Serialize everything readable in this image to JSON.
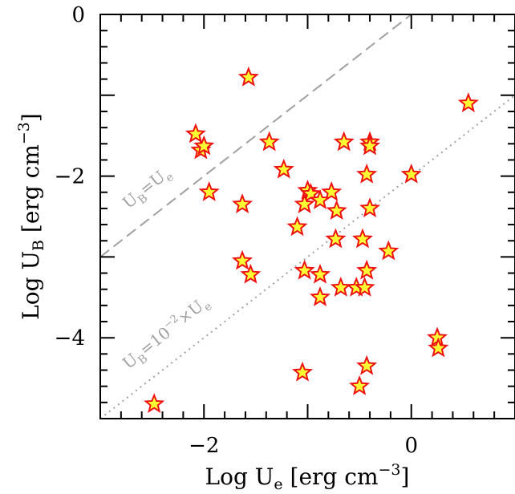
{
  "chart_data": {
    "type": "scatter",
    "title": "",
    "xlabel": "Log U_e [erg cm^-3]",
    "ylabel": "Log U_B [erg cm^-3]",
    "xlim": [
      -3,
      1
    ],
    "ylim": [
      -5,
      0
    ],
    "xticks": [
      {
        "value": -2,
        "label": "−2"
      },
      {
        "value": 0,
        "label": "0"
      }
    ],
    "yticks": [
      {
        "value": 0,
        "label": "0"
      },
      {
        "value": -2,
        "label": "−2"
      },
      {
        "value": -4,
        "label": "−4"
      }
    ],
    "marker": "star",
    "colors": {
      "marker_fill": "#ffff33",
      "marker_edge": "#ee1111",
      "reference_lines": "#a0a0a0"
    },
    "reference_lines": [
      {
        "label": "U_B=U_e",
        "slope": 1,
        "intercept": 0,
        "style": "dashed"
      },
      {
        "label": "U_B=10^-2×U_e",
        "slope": 1,
        "intercept": -2,
        "style": "dotted"
      }
    ],
    "points": [
      {
        "x": -1.57,
        "y": -0.78
      },
      {
        "x": 0.55,
        "y": -1.1
      },
      {
        "x": -2.08,
        "y": -1.48
      },
      {
        "x": -2.03,
        "y": -1.68
      },
      {
        "x": -2.0,
        "y": -1.63
      },
      {
        "x": -1.37,
        "y": -1.58
      },
      {
        "x": -0.65,
        "y": -1.58
      },
      {
        "x": -0.4,
        "y": -1.58
      },
      {
        "x": -0.4,
        "y": -1.63
      },
      {
        "x": -1.23,
        "y": -1.92
      },
      {
        "x": -0.43,
        "y": -1.98
      },
      {
        "x": 0.0,
        "y": -1.98
      },
      {
        "x": -1.95,
        "y": -2.2
      },
      {
        "x": -1.0,
        "y": -2.18
      },
      {
        "x": -0.97,
        "y": -2.22
      },
      {
        "x": -0.77,
        "y": -2.2
      },
      {
        "x": -0.88,
        "y": -2.3
      },
      {
        "x": -1.03,
        "y": -2.35
      },
      {
        "x": -1.63,
        "y": -2.35
      },
      {
        "x": -0.72,
        "y": -2.43
      },
      {
        "x": -0.4,
        "y": -2.4
      },
      {
        "x": -1.1,
        "y": -2.63
      },
      {
        "x": -0.73,
        "y": -2.78
      },
      {
        "x": -0.47,
        "y": -2.78
      },
      {
        "x": -0.22,
        "y": -2.93
      },
      {
        "x": -1.63,
        "y": -3.05
      },
      {
        "x": -1.55,
        "y": -3.22
      },
      {
        "x": -1.03,
        "y": -3.17
      },
      {
        "x": -0.88,
        "y": -3.22
      },
      {
        "x": -0.43,
        "y": -3.17
      },
      {
        "x": -0.68,
        "y": -3.38
      },
      {
        "x": -0.53,
        "y": -3.38
      },
      {
        "x": -0.45,
        "y": -3.38
      },
      {
        "x": -0.88,
        "y": -3.5
      },
      {
        "x": 0.25,
        "y": -4.0
      },
      {
        "x": 0.26,
        "y": -4.13
      },
      {
        "x": -1.05,
        "y": -4.43
      },
      {
        "x": -0.43,
        "y": -4.35
      },
      {
        "x": -0.5,
        "y": -4.6
      },
      {
        "x": -2.48,
        "y": -4.82
      }
    ]
  }
}
